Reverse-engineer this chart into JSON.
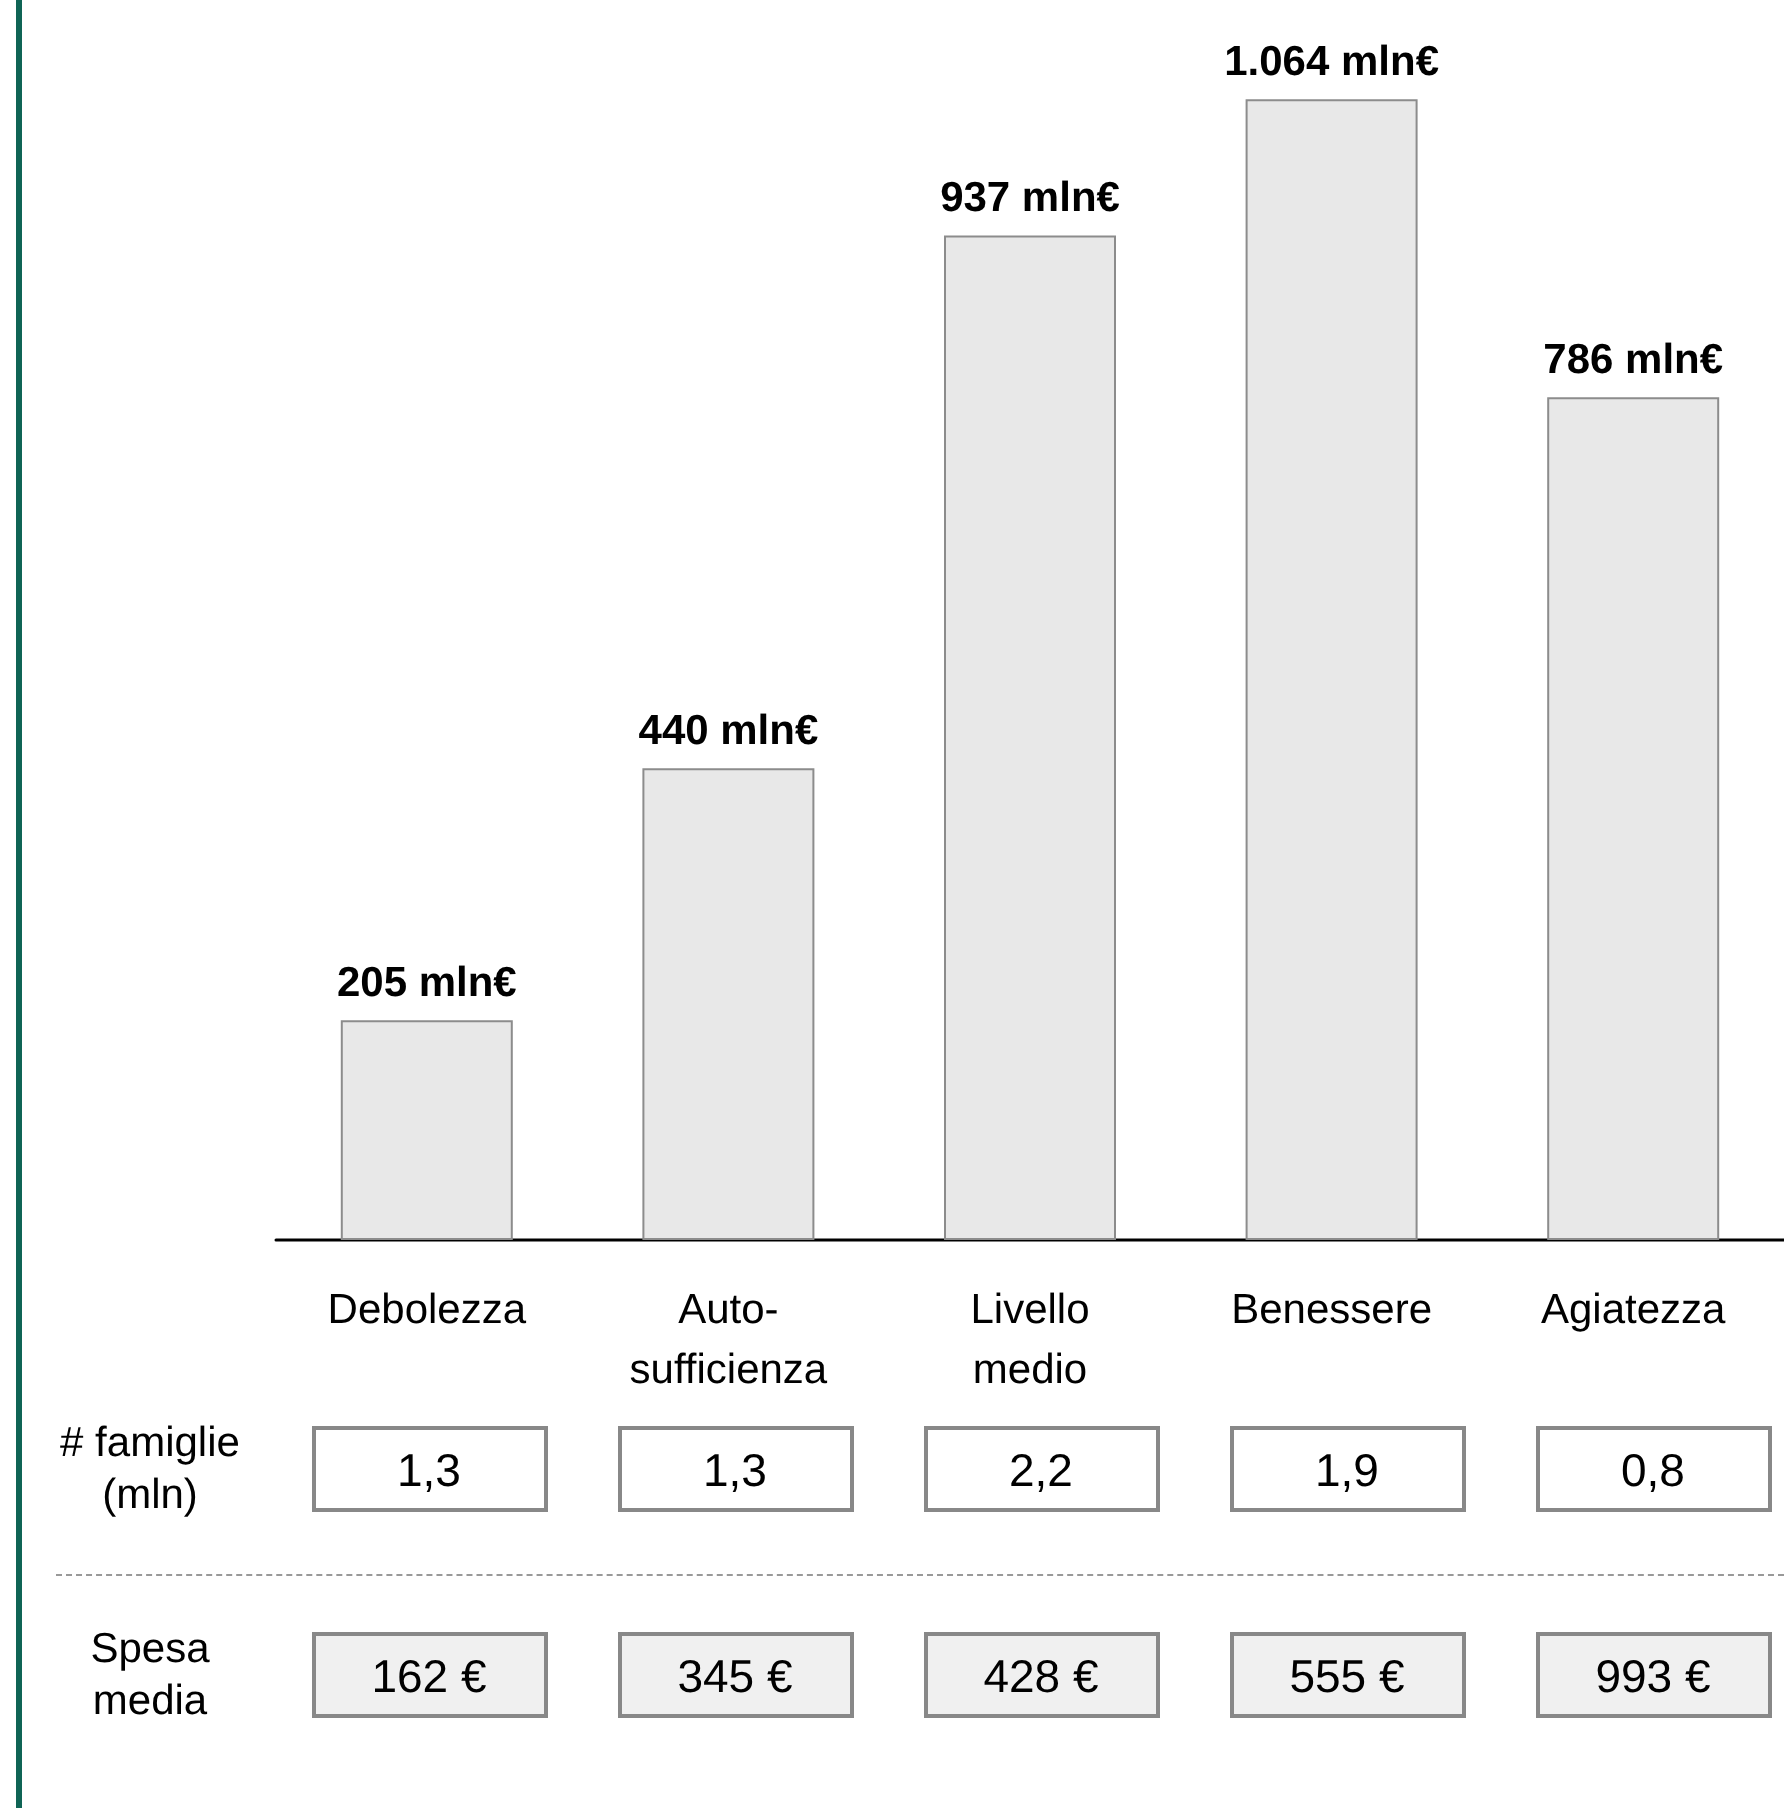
{
  "chart_data": {
    "type": "bar",
    "categories": [
      "Debolezza",
      "Auto-\nsufficienza",
      "Livello\nmedio",
      "Benessere",
      "Agiatezza"
    ],
    "values": [
      205,
      440,
      937,
      1064,
      786
    ],
    "value_labels": [
      "205 mln€",
      "440 mln€",
      "937 mln€",
      "1.064 mln€",
      "786 mln€"
    ],
    "color": "#e8e8e8",
    "annotations": [
      "# famiglie\n(mln)",
      "1,3",
      "1,3",
      "2,2",
      "1,9",
      "0,8",
      "Spesa\nmedia",
      "162 €",
      "345 €",
      "428 €",
      "555 €",
      "993 €"
    ]
  }
}
